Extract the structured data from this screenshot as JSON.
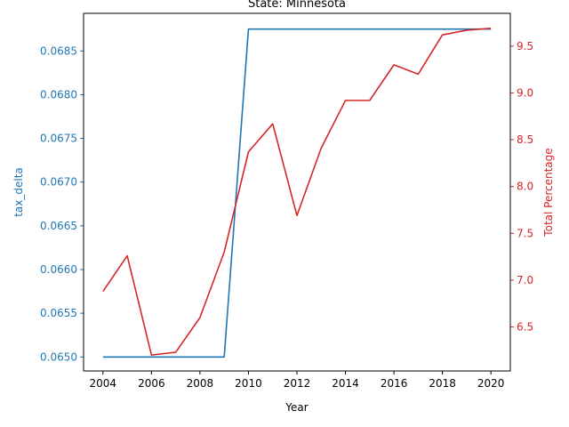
{
  "chart_data": {
    "type": "line",
    "title": "State: Minnesota",
    "xlabel": "Year",
    "ylabel_left": "tax_delta",
    "ylabel_right": "Total Percentage",
    "x": [
      2004,
      2005,
      2006,
      2007,
      2008,
      2009,
      2010,
      2011,
      2012,
      2013,
      2014,
      2015,
      2016,
      2017,
      2018,
      2019,
      2020
    ],
    "xlim": [
      2003.2,
      2020.8
    ],
    "ylim_left": [
      0.06484,
      0.06893
    ],
    "ylim_right": [
      6.03,
      9.85
    ],
    "x_ticks": [
      "2004",
      "2006",
      "2008",
      "2010",
      "2012",
      "2014",
      "2016",
      "2018",
      "2020"
    ],
    "y_ticks_left": [
      "0.0650",
      "0.0655",
      "0.0660",
      "0.0665",
      "0.0670",
      "0.0675",
      "0.0680",
      "0.0685"
    ],
    "y_ticks_right": [
      "6.5",
      "7.0",
      "7.5",
      "8.0",
      "8.5",
      "9.0",
      "9.5"
    ],
    "grid": false,
    "series": [
      {
        "name": "tax_delta",
        "axis": "left",
        "color": "#1f77b4",
        "values": [
          0.065,
          0.065,
          0.065,
          0.065,
          0.065,
          0.065,
          0.06875,
          0.06875,
          0.06875,
          0.06875,
          0.06875,
          0.06875,
          0.06875,
          0.06875,
          0.06875,
          0.06875,
          0.06875
        ]
      },
      {
        "name": "Total Percentage",
        "axis": "right",
        "color": "#d62728",
        "values": [
          6.88,
          7.26,
          6.2,
          6.23,
          6.6,
          7.3,
          8.37,
          8.67,
          7.69,
          8.41,
          8.92,
          8.92,
          9.3,
          9.2,
          9.62,
          9.67,
          9.69
        ]
      }
    ]
  }
}
